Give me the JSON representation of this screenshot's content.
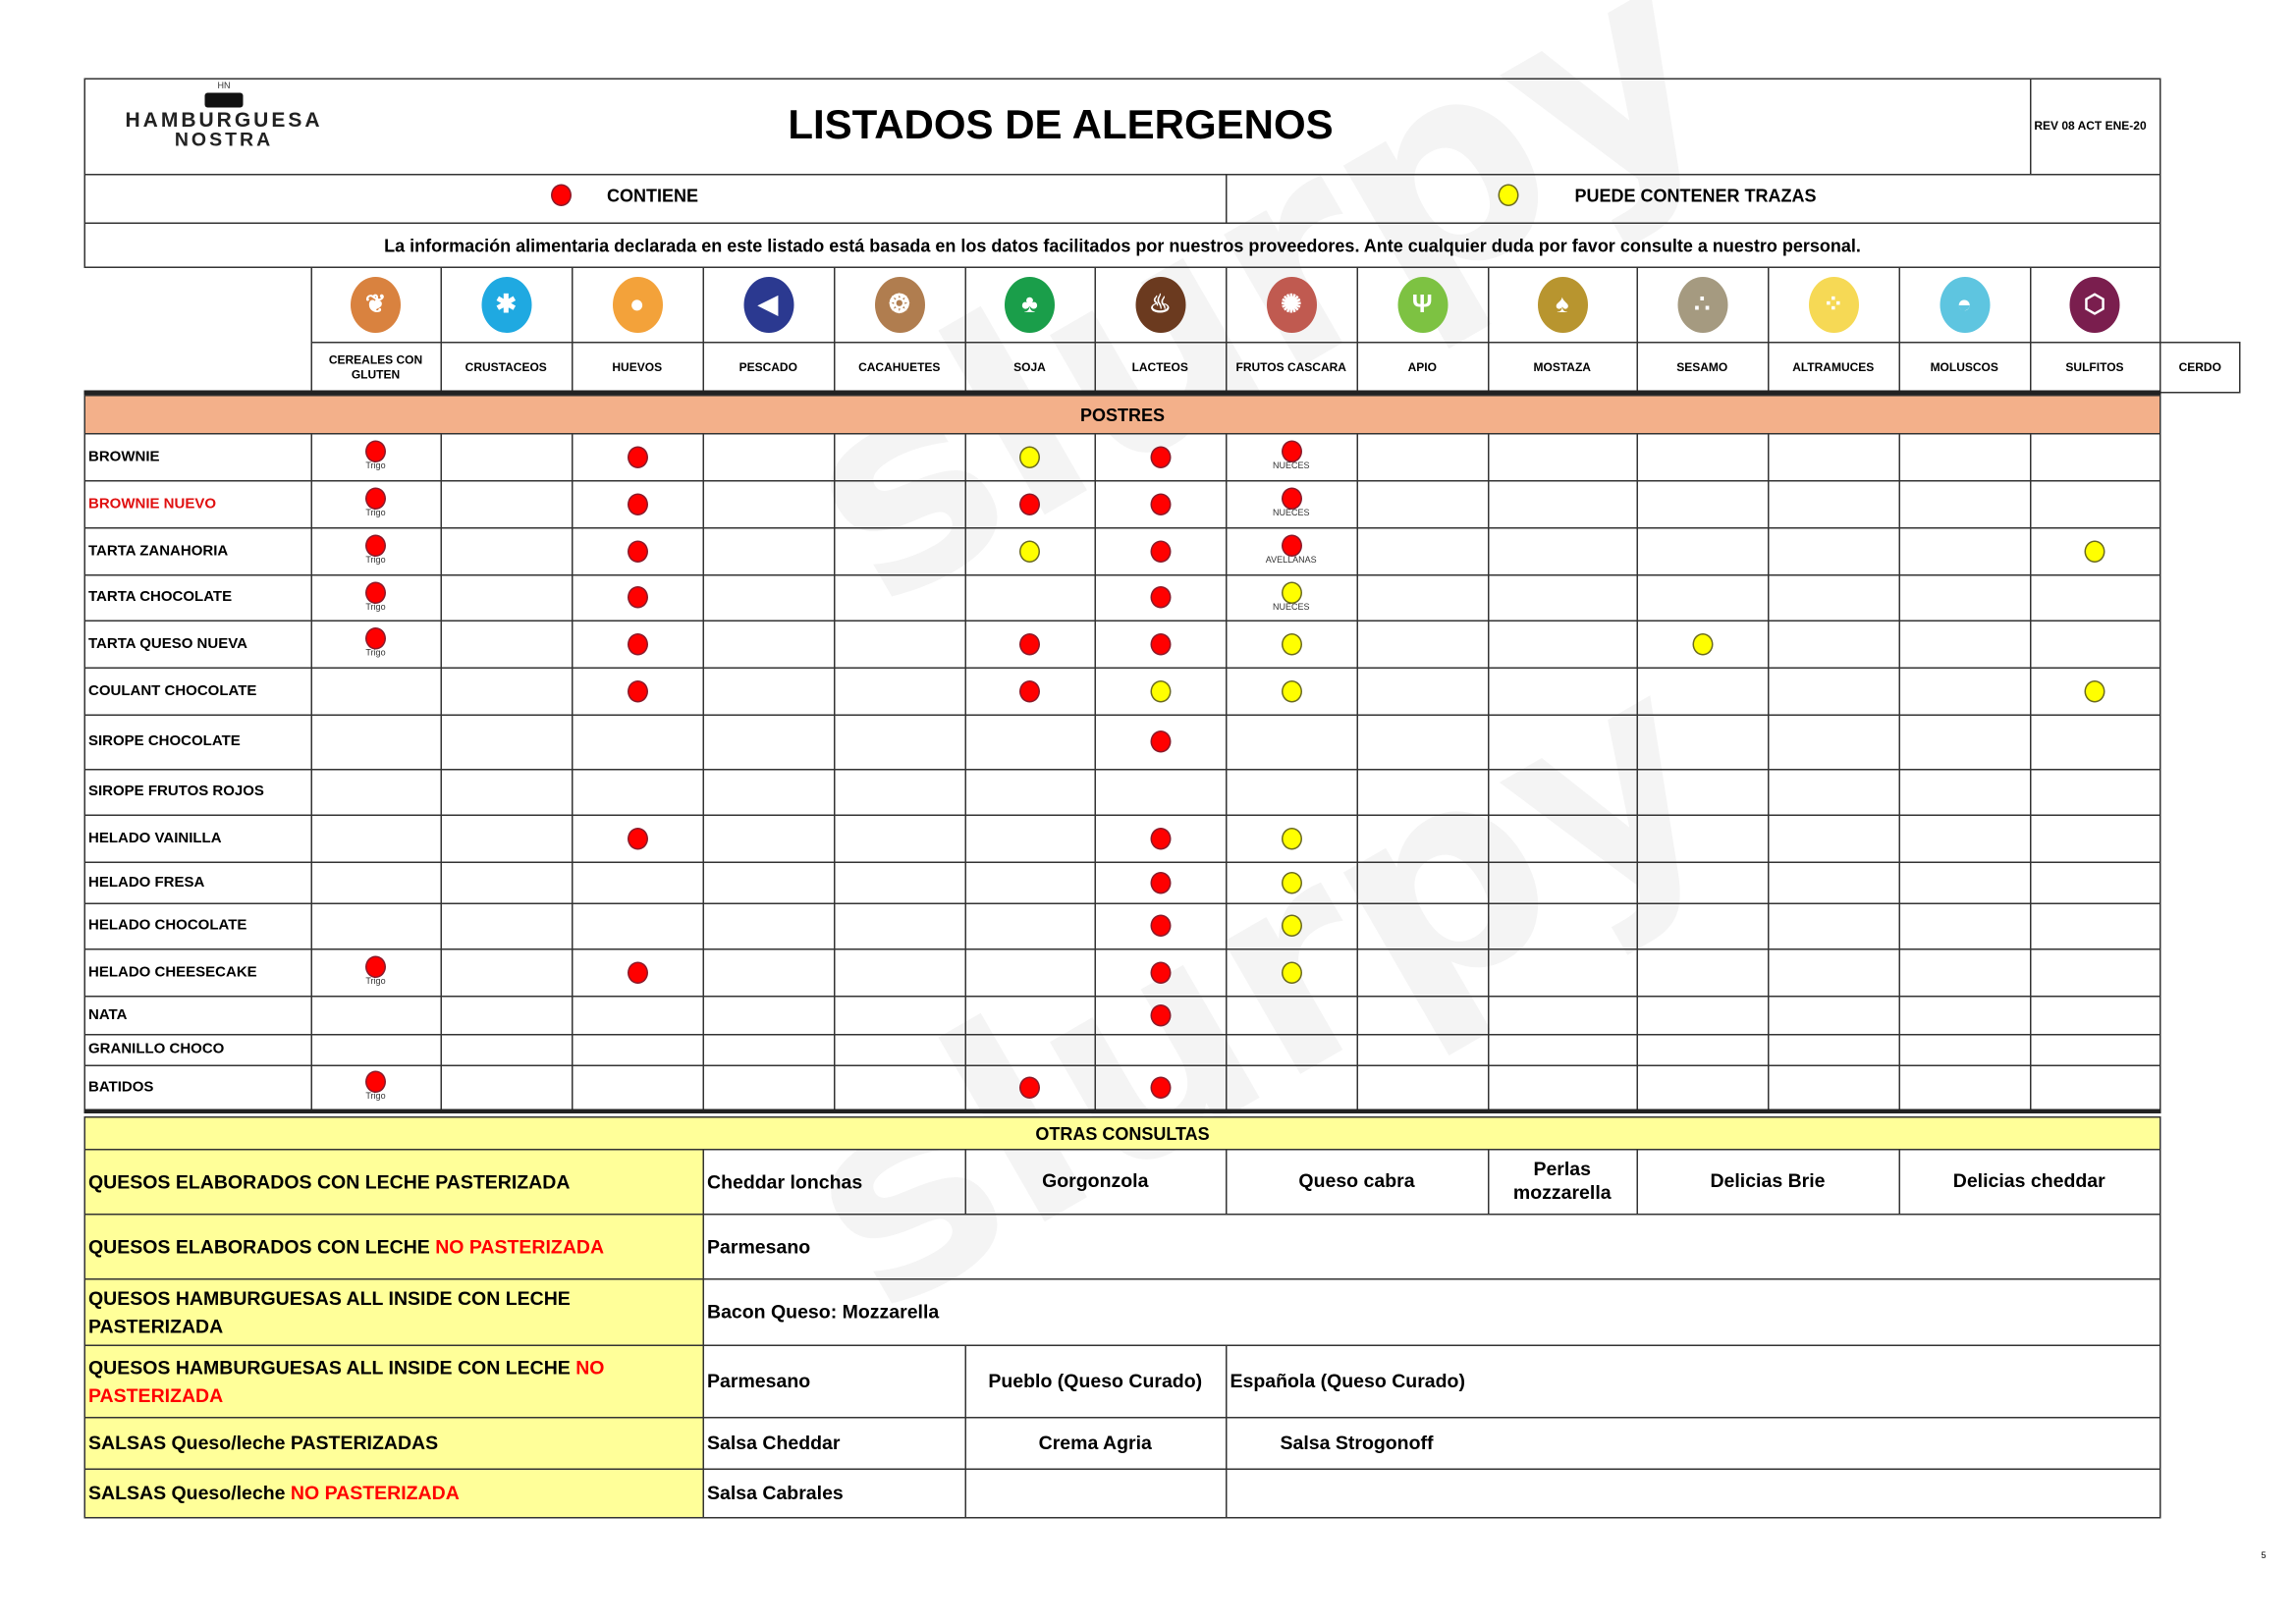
{
  "header": {
    "logo_text_1": "HAMBURGUESA",
    "logo_text_2": "NOSTRA",
    "logo_initials": "HN",
    "title": "LISTADOS DE ALERGENOS",
    "revision": "REV 08 ACT ENE-20"
  },
  "legend": {
    "contains_label": "CONTIENE",
    "contains_color": "#ff0000",
    "traces_label": "PUEDE CONTENER TRAZAS",
    "traces_color": "#ffff00"
  },
  "disclaimer": "La información alimentaria declarada en este listado está basada en los datos facilitados por nuestros proveedores. Ante cualquier duda por favor consulte a nuestro personal.",
  "allergens": [
    {
      "key": "cereales",
      "label": "CEREALES CON GLUTEN",
      "icon": "wheat-icon",
      "color": "#d9823f",
      "glyph": "❦"
    },
    {
      "key": "crustaceos",
      "label": "CRUSTACEOS",
      "icon": "crab-icon",
      "color": "#1fa9e1",
      "glyph": "✱"
    },
    {
      "key": "huevos",
      "label": "HUEVOS",
      "icon": "eggs-icon",
      "color": "#f3a23a",
      "glyph": "●"
    },
    {
      "key": "pescado",
      "label": "PESCADO",
      "icon": "fish-icon",
      "color": "#2b3990",
      "glyph": "◀"
    },
    {
      "key": "cacahuetes",
      "label": "CACAHUETES",
      "icon": "peanut-icon",
      "color": "#b07d4f",
      "glyph": "❂"
    },
    {
      "key": "soja",
      "label": "SOJA",
      "icon": "soy-icon",
      "color": "#1a9e4a",
      "glyph": "♣"
    },
    {
      "key": "lacteos",
      "label": "LACTEOS",
      "icon": "milk-jug-icon",
      "color": "#6b3a1f",
      "glyph": "♨"
    },
    {
      "key": "frutos",
      "label": "FRUTOS CASCARA",
      "icon": "nut-icon",
      "color": "#c05a50",
      "glyph": "✺"
    },
    {
      "key": "apio",
      "label": "APIO",
      "icon": "celery-icon",
      "color": "#7dc242",
      "glyph": "Ψ"
    },
    {
      "key": "mostaza",
      "label": "MOSTAZA",
      "icon": "mustard-icon",
      "color": "#b8952f",
      "glyph": "♠"
    },
    {
      "key": "sesamo",
      "label": "SESAMO",
      "icon": "sesame-icon",
      "color": "#a59a80",
      "glyph": "∴"
    },
    {
      "key": "altramuces",
      "label": "ALTRAMUCES",
      "icon": "lupin-icon",
      "color": "#f6d955",
      "glyph": "⁘"
    },
    {
      "key": "moluscos",
      "label": "MOLUSCOS",
      "icon": "shell-icon",
      "color": "#5ec5e0",
      "glyph": "◓"
    },
    {
      "key": "sulfitos",
      "label": "SULFITOS",
      "icon": "sulphite-icon",
      "color": "#7a1e4e",
      "glyph": "⬡"
    }
  ],
  "extra_column_label": "CERDO",
  "section_postres": "POSTRES",
  "rows": [
    {
      "name": "BROWNIE",
      "name_color": "#000000",
      "marks": [
        {
          "a": "cereales",
          "t": "R",
          "note": "Trigo"
        },
        {
          "a": "huevos",
          "t": "R"
        },
        {
          "a": "soja",
          "t": "Y"
        },
        {
          "a": "lacteos",
          "t": "R"
        },
        {
          "a": "frutos",
          "t": "R",
          "note": "NUECES"
        }
      ]
    },
    {
      "name": "BROWNIE NUEVO",
      "name_color": "#e01010",
      "marks": [
        {
          "a": "cereales",
          "t": "R",
          "note": "Trigo"
        },
        {
          "a": "huevos",
          "t": "R"
        },
        {
          "a": "soja",
          "t": "R"
        },
        {
          "a": "lacteos",
          "t": "R"
        },
        {
          "a": "frutos",
          "t": "R",
          "note": "NUECES"
        }
      ]
    },
    {
      "name": "TARTA ZANAHORIA",
      "name_color": "#000000",
      "marks": [
        {
          "a": "cereales",
          "t": "R",
          "note": "Trigo"
        },
        {
          "a": "huevos",
          "t": "R"
        },
        {
          "a": "soja",
          "t": "Y"
        },
        {
          "a": "lacteos",
          "t": "R"
        },
        {
          "a": "frutos",
          "t": "R",
          "note": "AVELLANAS"
        },
        {
          "a": "sulfitos",
          "t": "Y"
        }
      ]
    },
    {
      "name": "TARTA CHOCOLATE",
      "name_color": "#000000",
      "marks": [
        {
          "a": "cereales",
          "t": "R",
          "note": "Trigo"
        },
        {
          "a": "huevos",
          "t": "R"
        },
        {
          "a": "lacteos",
          "t": "R"
        },
        {
          "a": "frutos",
          "t": "Y",
          "note": "NUECES"
        }
      ]
    },
    {
      "name": "TARTA QUESO NUEVA",
      "name_color": "#000000",
      "marks": [
        {
          "a": "cereales",
          "t": "R",
          "note": "Trigo"
        },
        {
          "a": "huevos",
          "t": "R"
        },
        {
          "a": "soja",
          "t": "R"
        },
        {
          "a": "lacteos",
          "t": "R"
        },
        {
          "a": "frutos",
          "t": "Y"
        },
        {
          "a": "sesamo",
          "t": "Y"
        }
      ]
    },
    {
      "name": "COULANT CHOCOLATE",
      "name_color": "#000000",
      "marks": [
        {
          "a": "huevos",
          "t": "R"
        },
        {
          "a": "soja",
          "t": "R"
        },
        {
          "a": "lacteos",
          "t": "Y"
        },
        {
          "a": "frutos",
          "t": "Y"
        },
        {
          "a": "sulfitos",
          "t": "Y"
        }
      ]
    },
    {
      "name": "SIROPE CHOCOLATE",
      "name_color": "#000000",
      "marks": [
        {
          "a": "lacteos",
          "t": "R"
        }
      ]
    },
    {
      "name": "SIROPE FRUTOS ROJOS",
      "name_color": "#000000",
      "marks": []
    },
    {
      "name": "HELADO VAINILLA",
      "name_color": "#000000",
      "marks": [
        {
          "a": "huevos",
          "t": "R"
        },
        {
          "a": "lacteos",
          "t": "R"
        },
        {
          "a": "frutos",
          "t": "Y"
        }
      ]
    },
    {
      "name": "HELADO FRESA",
      "name_color": "#000000",
      "marks": [
        {
          "a": "lacteos",
          "t": "R"
        },
        {
          "a": "frutos",
          "t": "Y"
        }
      ]
    },
    {
      "name": "HELADO CHOCOLATE",
      "name_color": "#000000",
      "marks": [
        {
          "a": "lacteos",
          "t": "R"
        },
        {
          "a": "frutos",
          "t": "Y"
        }
      ]
    },
    {
      "name": "HELADO CHEESECAKE",
      "name_color": "#000000",
      "marks": [
        {
          "a": "cereales",
          "t": "R",
          "note": "Trigo"
        },
        {
          "a": "huevos",
          "t": "R"
        },
        {
          "a": "lacteos",
          "t": "R"
        },
        {
          "a": "frutos",
          "t": "Y"
        }
      ]
    },
    {
      "name": "NATA",
      "name_color": "#000000",
      "marks": [
        {
          "a": "lacteos",
          "t": "R"
        }
      ]
    },
    {
      "name": "GRANILLO  CHOCO",
      "name_color": "#000000",
      "marks": []
    },
    {
      "name": "BATIDOS",
      "name_color": "#000000",
      "marks": [
        {
          "a": "cereales",
          "t": "R",
          "note": "Trigo"
        },
        {
          "a": "soja",
          "t": "R"
        },
        {
          "a": "lacteos",
          "t": "R"
        }
      ]
    }
  ],
  "section_otras": "OTRAS CONSULTAS",
  "otras": [
    {
      "label": "QUESOS ELABORADOS CON LECHE PASTERIZADA",
      "highlight": "",
      "items": [
        "Cheddar lonchas",
        "Gorgonzola",
        "Queso cabra",
        "Perlas mozzarella",
        "Delicias Brie",
        "Delicias cheddar"
      ]
    },
    {
      "label": "QUESOS ELABORADOS CON LECHE ",
      "highlight": "NO PASTERIZADA",
      "items": [
        "Parmesano"
      ]
    },
    {
      "label": "QUESOS HAMBURGUESAS  ALL INSIDE CON LECHE PASTERIZADA",
      "highlight": "",
      "items": [
        "Bacon Queso:  Mozzarella"
      ]
    },
    {
      "label": "QUESOS HAMBURGUESAS  ALL INSIDE CON LECHE ",
      "highlight": "NO PASTERIZADA",
      "items": [
        "Parmesano",
        "Pueblo (Queso Curado)",
        "Española  (Queso Curado)"
      ]
    },
    {
      "label": "SALSAS Queso/leche  PASTERIZADAS",
      "highlight": "",
      "items": [
        "Salsa Cheddar",
        "Crema Agria",
        "Salsa Strogonoff"
      ]
    },
    {
      "label": "SALSAS Queso/leche  ",
      "highlight": "NO PASTERIZADA",
      "items": [
        "Salsa Cabrales",
        "",
        ""
      ]
    }
  ],
  "page_number": "5",
  "colors": {
    "postres_band": "#f3b08a",
    "otras_band": "#ffff99",
    "label_bg": "#ffff99",
    "highlight_red": "#ff0000"
  }
}
